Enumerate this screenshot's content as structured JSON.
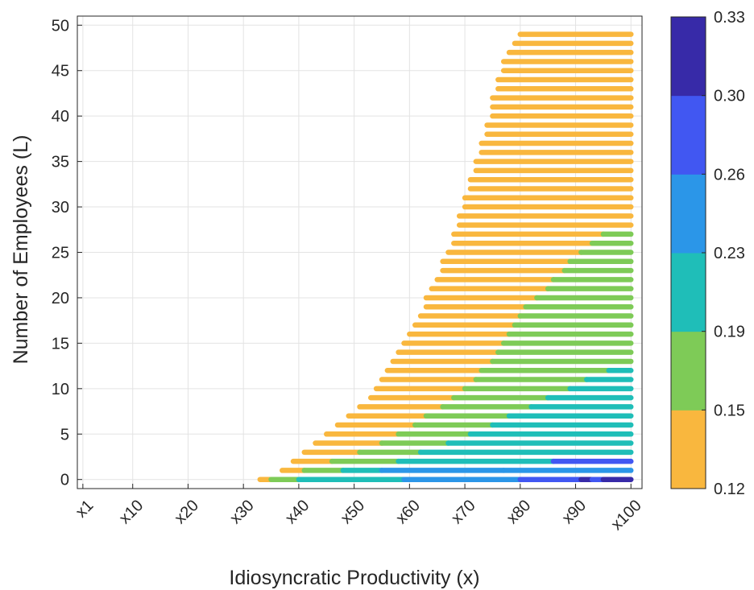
{
  "chart_data": {
    "type": "scatter",
    "xlabel": "Idiosyncratic Productivity (x)",
    "ylabel": "Number of Employees (L)",
    "x_ticks": [
      {
        "value": 1,
        "label": "x1"
      },
      {
        "value": 10,
        "label": "x10"
      },
      {
        "value": 20,
        "label": "x20"
      },
      {
        "value": 30,
        "label": "x30"
      },
      {
        "value": 40,
        "label": "x40"
      },
      {
        "value": 50,
        "label": "x50"
      },
      {
        "value": 60,
        "label": "x60"
      },
      {
        "value": 70,
        "label": "x70"
      },
      {
        "value": 80,
        "label": "x80"
      },
      {
        "value": 90,
        "label": "x90"
      },
      {
        "value": 100,
        "label": "x100"
      }
    ],
    "y_ticks": [
      {
        "value": 0,
        "label": "0"
      },
      {
        "value": 5,
        "label": "5"
      },
      {
        "value": 10,
        "label": "10"
      },
      {
        "value": 15,
        "label": "15"
      },
      {
        "value": 20,
        "label": "20"
      },
      {
        "value": 25,
        "label": "25"
      },
      {
        "value": 30,
        "label": "30"
      },
      {
        "value": 35,
        "label": "35"
      },
      {
        "value": 40,
        "label": "40"
      },
      {
        "value": 45,
        "label": "45"
      },
      {
        "value": 50,
        "label": "50"
      }
    ],
    "xlim": [
      0,
      102
    ],
    "ylim": [
      -1,
      51
    ],
    "grid": true,
    "colorbar": {
      "position": "right",
      "tick_labels": [
        "0.12",
        "0.15",
        "0.19",
        "0.23",
        "0.26",
        "0.30",
        "0.33"
      ],
      "bands": [
        {
          "from": 0.12,
          "to": 0.15,
          "color": "#F9B73E"
        },
        {
          "from": 0.15,
          "to": 0.19,
          "color": "#7ECB57"
        },
        {
          "from": 0.19,
          "to": 0.23,
          "color": "#1FBEB8"
        },
        {
          "from": 0.23,
          "to": 0.26,
          "color": "#2B96E8"
        },
        {
          "from": 0.26,
          "to": 0.3,
          "color": "#4157F2"
        },
        {
          "from": 0.3,
          "to": 0.33,
          "color": "#372AA8"
        }
      ]
    },
    "rows": [
      {
        "L": 0,
        "segments": [
          [
            33,
            35,
            "#F9B73E"
          ],
          [
            35,
            40,
            "#7ECB57"
          ],
          [
            40,
            42,
            "#1FBEB8"
          ],
          [
            42,
            59,
            "#1FBEB8"
          ],
          [
            59,
            80,
            "#2B96E8"
          ],
          [
            80,
            91,
            "#4157F2"
          ],
          [
            91,
            93,
            "#372AA8"
          ],
          [
            93,
            95,
            "#4157F2"
          ],
          [
            95,
            100,
            "#372AA8"
          ]
        ]
      },
      {
        "L": 1,
        "segments": [
          [
            37,
            41,
            "#F9B73E"
          ],
          [
            41,
            48,
            "#7ECB57"
          ],
          [
            48,
            55,
            "#1FBEB8"
          ],
          [
            55,
            77,
            "#2B96E8"
          ],
          [
            77,
            100,
            "#2B96E8"
          ]
        ]
      },
      {
        "L": 2,
        "segments": [
          [
            39,
            46,
            "#F9B73E"
          ],
          [
            46,
            58,
            "#7ECB57"
          ],
          [
            58,
            86,
            "#1FBEB8"
          ],
          [
            86,
            100,
            "#4157F2"
          ]
        ]
      },
      {
        "L": 3,
        "segments": [
          [
            41,
            51,
            "#F9B73E"
          ],
          [
            51,
            62,
            "#7ECB57"
          ],
          [
            62,
            100,
            "#1FBEB8"
          ]
        ]
      },
      {
        "L": 4,
        "segments": [
          [
            43,
            55,
            "#F9B73E"
          ],
          [
            55,
            67,
            "#7ECB57"
          ],
          [
            67,
            100,
            "#1FBEB8"
          ]
        ]
      },
      {
        "L": 5,
        "segments": [
          [
            45,
            58,
            "#F9B73E"
          ],
          [
            58,
            71,
            "#7ECB57"
          ],
          [
            71,
            100,
            "#1FBEB8"
          ]
        ]
      },
      {
        "L": 6,
        "segments": [
          [
            47,
            61,
            "#F9B73E"
          ],
          [
            61,
            75,
            "#7ECB57"
          ],
          [
            75,
            100,
            "#1FBEB8"
          ]
        ]
      },
      {
        "L": 7,
        "segments": [
          [
            49,
            63,
            "#F9B73E"
          ],
          [
            63,
            78,
            "#7ECB57"
          ],
          [
            78,
            100,
            "#1FBEB8"
          ]
        ]
      },
      {
        "L": 8,
        "segments": [
          [
            51,
            66,
            "#F9B73E"
          ],
          [
            66,
            82,
            "#7ECB57"
          ],
          [
            82,
            100,
            "#1FBEB8"
          ]
        ]
      },
      {
        "L": 9,
        "segments": [
          [
            53,
            68,
            "#F9B73E"
          ],
          [
            68,
            85,
            "#7ECB57"
          ],
          [
            85,
            100,
            "#1FBEB8"
          ]
        ]
      },
      {
        "L": 10,
        "segments": [
          [
            54,
            70,
            "#F9B73E"
          ],
          [
            70,
            89,
            "#7ECB57"
          ],
          [
            89,
            100,
            "#1FBEB8"
          ]
        ]
      },
      {
        "L": 11,
        "segments": [
          [
            55,
            72,
            "#F9B73E"
          ],
          [
            72,
            92,
            "#7ECB57"
          ],
          [
            92,
            100,
            "#1FBEB8"
          ]
        ]
      },
      {
        "L": 12,
        "segments": [
          [
            56,
            73,
            "#F9B73E"
          ],
          [
            73,
            96,
            "#7ECB57"
          ],
          [
            96,
            100,
            "#1FBEB8"
          ]
        ]
      },
      {
        "L": 13,
        "segments": [
          [
            57,
            75,
            "#F9B73E"
          ],
          [
            75,
            100,
            "#7ECB57"
          ]
        ]
      },
      {
        "L": 14,
        "segments": [
          [
            58,
            76,
            "#F9B73E"
          ],
          [
            76,
            100,
            "#7ECB57"
          ]
        ]
      },
      {
        "L": 15,
        "segments": [
          [
            59,
            77,
            "#F9B73E"
          ],
          [
            77,
            100,
            "#7ECB57"
          ]
        ]
      },
      {
        "L": 16,
        "segments": [
          [
            60,
            78,
            "#F9B73E"
          ],
          [
            78,
            100,
            "#7ECB57"
          ]
        ]
      },
      {
        "L": 17,
        "segments": [
          [
            61,
            79,
            "#F9B73E"
          ],
          [
            79,
            100,
            "#7ECB57"
          ]
        ]
      },
      {
        "L": 18,
        "segments": [
          [
            62,
            80,
            "#F9B73E"
          ],
          [
            80,
            100,
            "#7ECB57"
          ]
        ]
      },
      {
        "L": 19,
        "segments": [
          [
            63,
            81,
            "#F9B73E"
          ],
          [
            81,
            100,
            "#7ECB57"
          ]
        ]
      },
      {
        "L": 20,
        "segments": [
          [
            63,
            83,
            "#F9B73E"
          ],
          [
            83,
            100,
            "#7ECB57"
          ]
        ]
      },
      {
        "L": 21,
        "segments": [
          [
            64,
            85,
            "#F9B73E"
          ],
          [
            85,
            100,
            "#7ECB57"
          ]
        ]
      },
      {
        "L": 22,
        "segments": [
          [
            65,
            86,
            "#F9B73E"
          ],
          [
            86,
            100,
            "#7ECB57"
          ]
        ]
      },
      {
        "L": 23,
        "segments": [
          [
            66,
            88,
            "#F9B73E"
          ],
          [
            88,
            100,
            "#7ECB57"
          ]
        ]
      },
      {
        "L": 24,
        "segments": [
          [
            66,
            89,
            "#F9B73E"
          ],
          [
            89,
            100,
            "#7ECB57"
          ]
        ]
      },
      {
        "L": 25,
        "segments": [
          [
            67,
            91,
            "#F9B73E"
          ],
          [
            91,
            100,
            "#7ECB57"
          ]
        ]
      },
      {
        "L": 26,
        "segments": [
          [
            68,
            93,
            "#F9B73E"
          ],
          [
            93,
            100,
            "#7ECB57"
          ]
        ]
      },
      {
        "L": 27,
        "segments": [
          [
            68,
            95,
            "#F9B73E"
          ],
          [
            95,
            100,
            "#7ECB57"
          ]
        ]
      },
      {
        "L": 28,
        "segments": [
          [
            69,
            100,
            "#F9B73E"
          ]
        ]
      },
      {
        "L": 29,
        "segments": [
          [
            69,
            100,
            "#F9B73E"
          ]
        ]
      },
      {
        "L": 30,
        "segments": [
          [
            70,
            100,
            "#F9B73E"
          ]
        ]
      },
      {
        "L": 31,
        "segments": [
          [
            70,
            100,
            "#F9B73E"
          ]
        ]
      },
      {
        "L": 32,
        "segments": [
          [
            71,
            100,
            "#F9B73E"
          ]
        ]
      },
      {
        "L": 33,
        "segments": [
          [
            71,
            100,
            "#F9B73E"
          ]
        ]
      },
      {
        "L": 34,
        "segments": [
          [
            72,
            100,
            "#F9B73E"
          ]
        ]
      },
      {
        "L": 35,
        "segments": [
          [
            72,
            100,
            "#F9B73E"
          ]
        ]
      },
      {
        "L": 36,
        "segments": [
          [
            73,
            100,
            "#F9B73E"
          ]
        ]
      },
      {
        "L": 37,
        "segments": [
          [
            73,
            100,
            "#F9B73E"
          ]
        ]
      },
      {
        "L": 38,
        "segments": [
          [
            74,
            100,
            "#F9B73E"
          ]
        ]
      },
      {
        "L": 39,
        "segments": [
          [
            74,
            100,
            "#F9B73E"
          ]
        ]
      },
      {
        "L": 40,
        "segments": [
          [
            75,
            100,
            "#F9B73E"
          ]
        ]
      },
      {
        "L": 41,
        "segments": [
          [
            75,
            100,
            "#F9B73E"
          ]
        ]
      },
      {
        "L": 42,
        "segments": [
          [
            75,
            100,
            "#F9B73E"
          ]
        ]
      },
      {
        "L": 43,
        "segments": [
          [
            76,
            100,
            "#F9B73E"
          ]
        ]
      },
      {
        "L": 44,
        "segments": [
          [
            76,
            100,
            "#F9B73E"
          ]
        ]
      },
      {
        "L": 45,
        "segments": [
          [
            77,
            100,
            "#F9B73E"
          ]
        ]
      },
      {
        "L": 46,
        "segments": [
          [
            77,
            100,
            "#F9B73E"
          ]
        ]
      },
      {
        "L": 47,
        "segments": [
          [
            78,
            100,
            "#F9B73E"
          ]
        ]
      },
      {
        "L": 48,
        "segments": [
          [
            79,
            100,
            "#F9B73E"
          ]
        ]
      },
      {
        "L": 49,
        "segments": [
          [
            80,
            100,
            "#F9B73E"
          ]
        ]
      }
    ]
  }
}
